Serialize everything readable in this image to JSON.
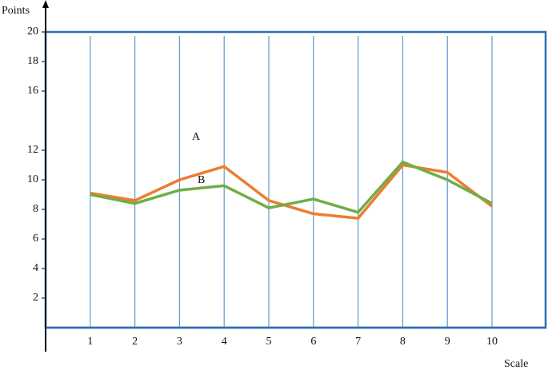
{
  "chart_data": {
    "type": "line",
    "y_label": "Points",
    "x_label": "Scale",
    "annotations": [
      "A",
      "B"
    ],
    "x": [
      1,
      2,
      3,
      4,
      5,
      6,
      7,
      8,
      9,
      10
    ],
    "xlim": [
      0,
      11.2
    ],
    "xticks": [
      1,
      2,
      3,
      4,
      5,
      6,
      7,
      8,
      9,
      10
    ],
    "ylim": [
      0,
      20
    ],
    "yticks": [
      2,
      4,
      6,
      8,
      10,
      12,
      16,
      18,
      20
    ],
    "grid": true,
    "series": [
      {
        "name": "A",
        "color": "#ed7d31",
        "values": [
          9.1,
          8.6,
          10,
          10.9,
          8.6,
          7.7,
          7.4,
          11,
          10.5,
          8.2
        ]
      },
      {
        "name": "B",
        "color": "#70ad47",
        "values": [
          9,
          8.4,
          9.3,
          9.6,
          8.1,
          8.7,
          7.8,
          11.2,
          10,
          8.4
        ]
      }
    ]
  }
}
